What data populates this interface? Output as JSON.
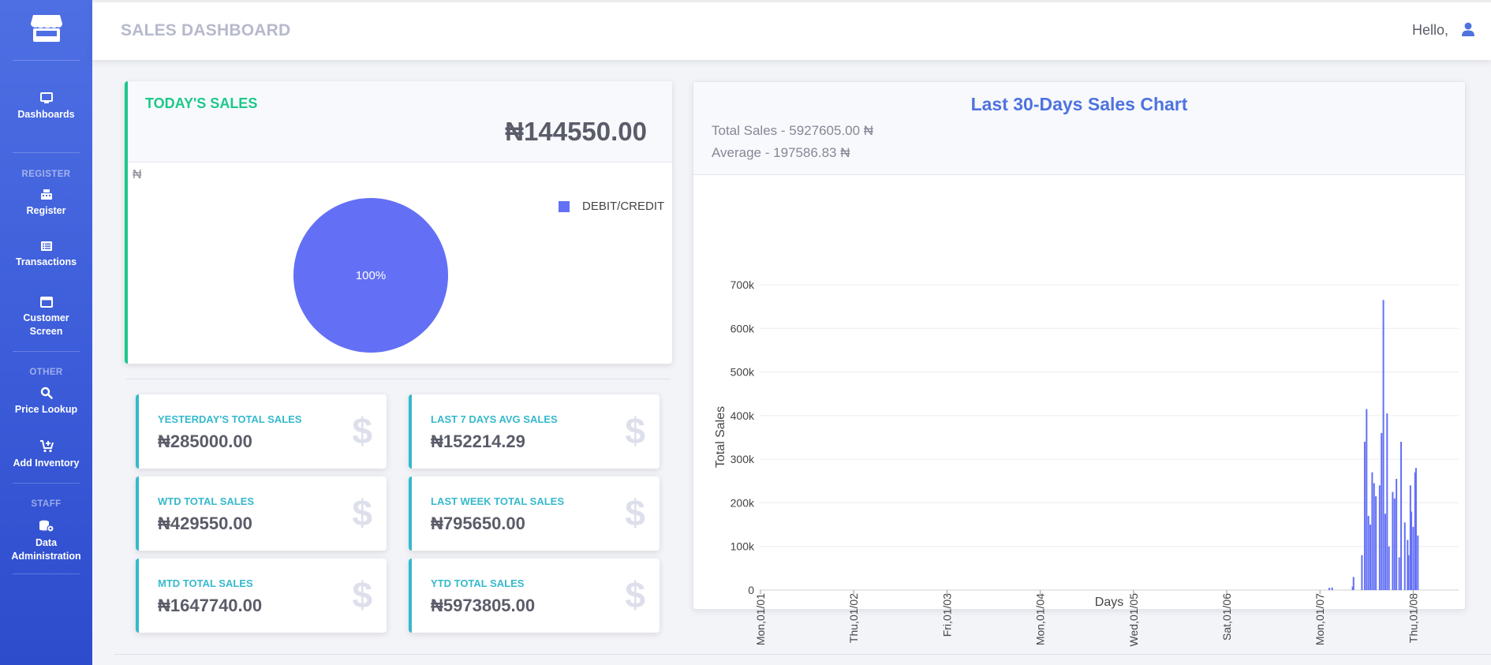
{
  "sidebar": {
    "brand_icon": "store-icon",
    "items": [
      {
        "label": "Dashboards",
        "icon": "monitor-icon"
      },
      {
        "label": "Register",
        "icon": "cash-register-icon"
      },
      {
        "label": "Transactions",
        "icon": "list-icon"
      },
      {
        "label": "Customer Screen",
        "icon": "window-icon"
      },
      {
        "label": "Price Lookup",
        "icon": "search-icon"
      },
      {
        "label": "Add Inventory",
        "icon": "cart-plus-icon"
      },
      {
        "label": "Data Administration",
        "icon": "database-gear-icon"
      }
    ],
    "headings": {
      "register": "REGISTER",
      "other": "OTHER",
      "staff": "STAFF"
    }
  },
  "topbar": {
    "title": "SALES DASHBOARD",
    "greeting": "Hello,",
    "user_icon": "user-icon"
  },
  "today": {
    "title": "TODAY'S SALES",
    "amount": "₦144550.00",
    "currency_mark": "₦",
    "pie_label": "100%",
    "legend": "DEBIT/CREDIT",
    "pie_color": "#6370f5"
  },
  "stats": [
    {
      "label": "YESTERDAY'S TOTAL SALES",
      "value": "₦285000.00"
    },
    {
      "label": "LAST 7 DAYS AVG SALES",
      "value": "₦152214.29"
    },
    {
      "label": "WTD TOTAL SALES",
      "value": "₦429550.00"
    },
    {
      "label": "LAST WEEK TOTAL SALES",
      "value": "₦795650.00"
    },
    {
      "label": "MTD TOTAL SALES",
      "value": "₦1647740.00"
    },
    {
      "label": "YTD TOTAL SALES",
      "value": "₦5973805.00"
    }
  ],
  "stat_icon": "$",
  "chart_header": {
    "title": "Last 30-Days Sales Chart",
    "total": "Total Sales - 5927605.00 ₦",
    "average": "Average - 197586.83 ₦"
  },
  "colors": {
    "accent": "#4e73df",
    "success": "#1cc88a",
    "info": "#36b9cc",
    "bar": "#6370f5"
  },
  "chart_data": [
    {
      "type": "pie",
      "title": "",
      "categories": [
        "DEBIT/CREDIT"
      ],
      "values": [
        100
      ],
      "labels": [
        "100%"
      ]
    },
    {
      "type": "bar",
      "title": "Last 30-Days Sales Chart",
      "xlabel": "Days",
      "ylabel": "Total Sales",
      "ylim": [
        0,
        700000
      ],
      "yticks": [
        "0",
        "100k",
        "200k",
        "300k",
        "400k",
        "500k",
        "600k",
        "700k"
      ],
      "xticks": [
        "Mon,01/01",
        "Thu,01/02",
        "Fri,01/03",
        "Mon,01/04",
        "Wed,01/05",
        "Sat,01/06",
        "Mon,01/07",
        "Thu,01/08"
      ],
      "grid": true,
      "bars": [
        {
          "day": 6.1,
          "value": 5000
        },
        {
          "day": 6.13,
          "value": 6000
        },
        {
          "day": 6.35,
          "value": 8000
        },
        {
          "day": 6.36,
          "value": 30000
        },
        {
          "day": 6.45,
          "value": 80000
        },
        {
          "day": 6.48,
          "value": 340000
        },
        {
          "day": 6.5,
          "value": 415000
        },
        {
          "day": 6.52,
          "value": 170000
        },
        {
          "day": 6.54,
          "value": 150000
        },
        {
          "day": 6.56,
          "value": 270000
        },
        {
          "day": 6.58,
          "value": 245000
        },
        {
          "day": 6.6,
          "value": 215000
        },
        {
          "day": 6.64,
          "value": 240000
        },
        {
          "day": 6.66,
          "value": 360000
        },
        {
          "day": 6.68,
          "value": 665000
        },
        {
          "day": 6.7,
          "value": 175000
        },
        {
          "day": 6.72,
          "value": 405000
        },
        {
          "day": 6.74,
          "value": 100000
        },
        {
          "day": 6.78,
          "value": 225000
        },
        {
          "day": 6.8,
          "value": 210000
        },
        {
          "day": 6.82,
          "value": 255000
        },
        {
          "day": 6.85,
          "value": 75000
        },
        {
          "day": 6.87,
          "value": 340000
        },
        {
          "day": 6.91,
          "value": 155000
        },
        {
          "day": 6.94,
          "value": 115000
        },
        {
          "day": 6.95,
          "value": 80000
        },
        {
          "day": 6.97,
          "value": 240000
        },
        {
          "day": 6.98,
          "value": 180000
        },
        {
          "day": 7.0,
          "value": 145000
        },
        {
          "day": 7.02,
          "value": 270000
        },
        {
          "day": 7.03,
          "value": 280000
        },
        {
          "day": 7.05,
          "value": 125000
        }
      ]
    }
  ]
}
